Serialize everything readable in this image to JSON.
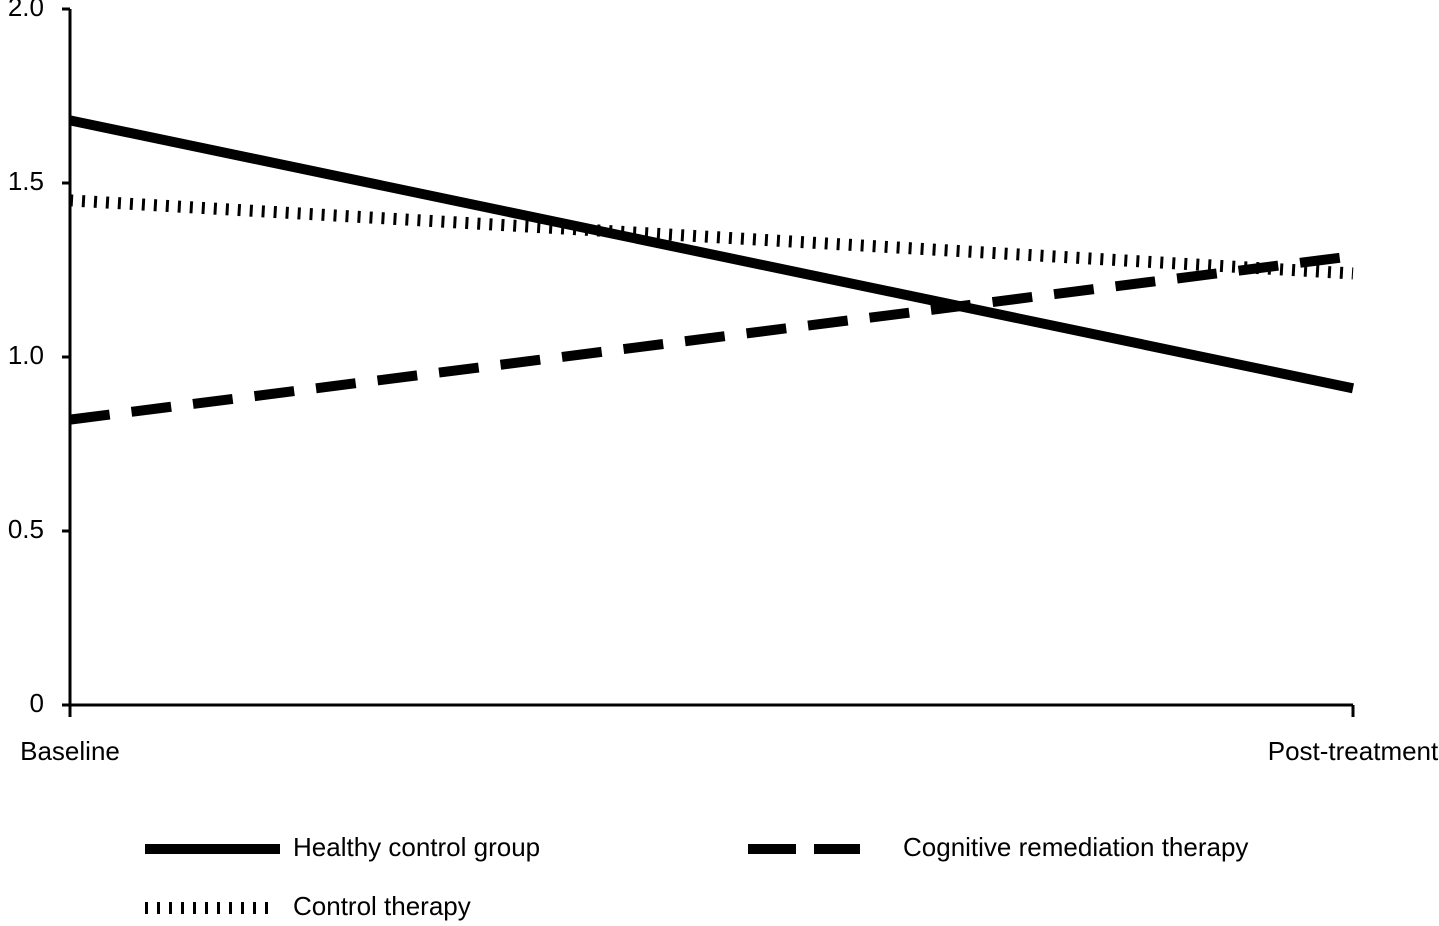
{
  "chart_data": {
    "type": "line",
    "categories": [
      "Baseline",
      "Post-treatment"
    ],
    "series": [
      {
        "name": "Healthy control group",
        "color": "#000000",
        "style": "solid",
        "values": [
          1.68,
          0.91
        ]
      },
      {
        "name": "Cognitive remediation therapy",
        "color": "#000000",
        "style": "dashed",
        "values": [
          0.82,
          1.29
        ]
      },
      {
        "name": "Control therapy",
        "color": "#000000",
        "style": "dotted",
        "values": [
          1.45,
          1.24
        ]
      }
    ],
    "ylim": [
      0,
      2
    ],
    "yticks": [
      0,
      0.5,
      {
        "value": 1,
        "label": "1.0"
      },
      1.5,
      {
        "value": 2,
        "label": "2.0"
      }
    ],
    "grid": false,
    "legend": "bottom"
  }
}
